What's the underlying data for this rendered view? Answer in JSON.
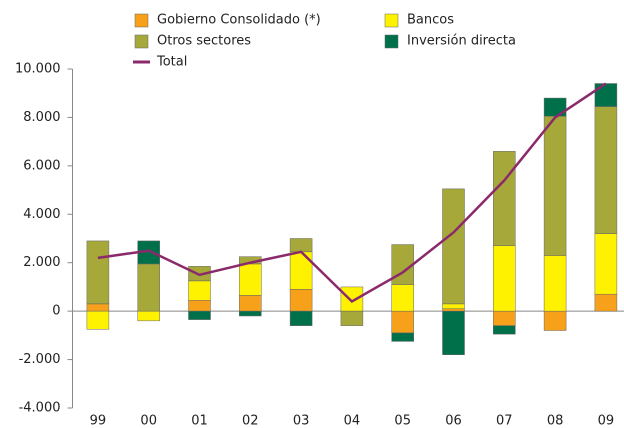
{
  "chart_data": {
    "type": "stacked-bar-line",
    "categories": [
      "99",
      "00",
      "01",
      "02",
      "03",
      "04",
      "05",
      "06",
      "07",
      "08",
      "09"
    ],
    "series": [
      {
        "name": "Gobierno Consolidado (*)",
        "color": "#f7a11a",
        "kind": "bar",
        "values": [
          300,
          0,
          450,
          650,
          900,
          0,
          -900,
          100,
          -600,
          -800,
          700
        ]
      },
      {
        "name": "Bancos",
        "color": "#fff200",
        "kind": "bar",
        "values": [
          -750,
          -400,
          800,
          1300,
          1550,
          1000,
          1100,
          200,
          2700,
          2300,
          2500
        ]
      },
      {
        "name": "Otros sectores",
        "color": "#a6a83a",
        "kind": "bar",
        "values": [
          2600,
          1950,
          600,
          300,
          550,
          -600,
          1650,
          4750,
          3900,
          5750,
          5250
        ]
      },
      {
        "name": "Inversión directa",
        "color": "#00704a",
        "kind": "bar",
        "values": [
          0,
          950,
          -350,
          -200,
          -600,
          0,
          -350,
          -1800,
          -350,
          750,
          950
        ]
      },
      {
        "name": "Total",
        "color": "#8b2a6b",
        "kind": "line",
        "values": [
          2200,
          2500,
          1500,
          2000,
          2450,
          400,
          1600,
          3250,
          5400,
          8000,
          9400
        ]
      }
    ],
    "ylim": [
      -4000,
      10000
    ],
    "yticks": [
      {
        "value": -4000,
        "label": "-4.000"
      },
      {
        "value": -2000,
        "label": "-2.000"
      },
      0,
      {
        "value": 2000,
        "label": "2.000"
      },
      {
        "value": 4000,
        "label": "4.000"
      },
      {
        "value": 6000,
        "label": "6.000"
      },
      {
        "value": 8000,
        "label": "8.000"
      },
      {
        "value": 10000,
        "label": "10.000"
      }
    ],
    "grid": false
  }
}
